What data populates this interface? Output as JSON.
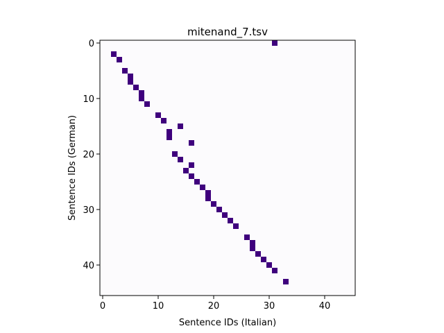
{
  "chart_data": {
    "type": "heatmap",
    "title": "mitenand_7.tsv",
    "xlabel": "Sentence IDs (Italian)",
    "ylabel": "Sentence IDs (German)",
    "xlim": [
      -0.5,
      45.5
    ],
    "ylim": [
      45.5,
      -0.5
    ],
    "x_ticks": [
      0,
      10,
      20,
      30,
      40
    ],
    "y_ticks": [
      0,
      10,
      20,
      30,
      40
    ],
    "background_color": "#fcfbfd",
    "cell_color": "#3f007d",
    "grid": false,
    "cells": [
      {
        "x": 31,
        "y": 0
      },
      {
        "x": 2,
        "y": 2
      },
      {
        "x": 3,
        "y": 3
      },
      {
        "x": 4,
        "y": 5
      },
      {
        "x": 5,
        "y": 6
      },
      {
        "x": 5,
        "y": 7
      },
      {
        "x": 6,
        "y": 8
      },
      {
        "x": 7,
        "y": 9
      },
      {
        "x": 7,
        "y": 10
      },
      {
        "x": 8,
        "y": 11
      },
      {
        "x": 10,
        "y": 13
      },
      {
        "x": 11,
        "y": 14
      },
      {
        "x": 14,
        "y": 15
      },
      {
        "x": 12,
        "y": 16
      },
      {
        "x": 12,
        "y": 17
      },
      {
        "x": 16,
        "y": 18
      },
      {
        "x": 13,
        "y": 20
      },
      {
        "x": 14,
        "y": 21
      },
      {
        "x": 16,
        "y": 22
      },
      {
        "x": 15,
        "y": 23
      },
      {
        "x": 16,
        "y": 24
      },
      {
        "x": 17,
        "y": 25
      },
      {
        "x": 18,
        "y": 26
      },
      {
        "x": 19,
        "y": 27
      },
      {
        "x": 19,
        "y": 28
      },
      {
        "x": 20,
        "y": 29
      },
      {
        "x": 21,
        "y": 30
      },
      {
        "x": 22,
        "y": 31
      },
      {
        "x": 23,
        "y": 32
      },
      {
        "x": 24,
        "y": 33
      },
      {
        "x": 26,
        "y": 35
      },
      {
        "x": 27,
        "y": 36
      },
      {
        "x": 27,
        "y": 37
      },
      {
        "x": 28,
        "y": 38
      },
      {
        "x": 29,
        "y": 39
      },
      {
        "x": 30,
        "y": 40
      },
      {
        "x": 31,
        "y": 41
      },
      {
        "x": 33,
        "y": 43
      }
    ]
  }
}
